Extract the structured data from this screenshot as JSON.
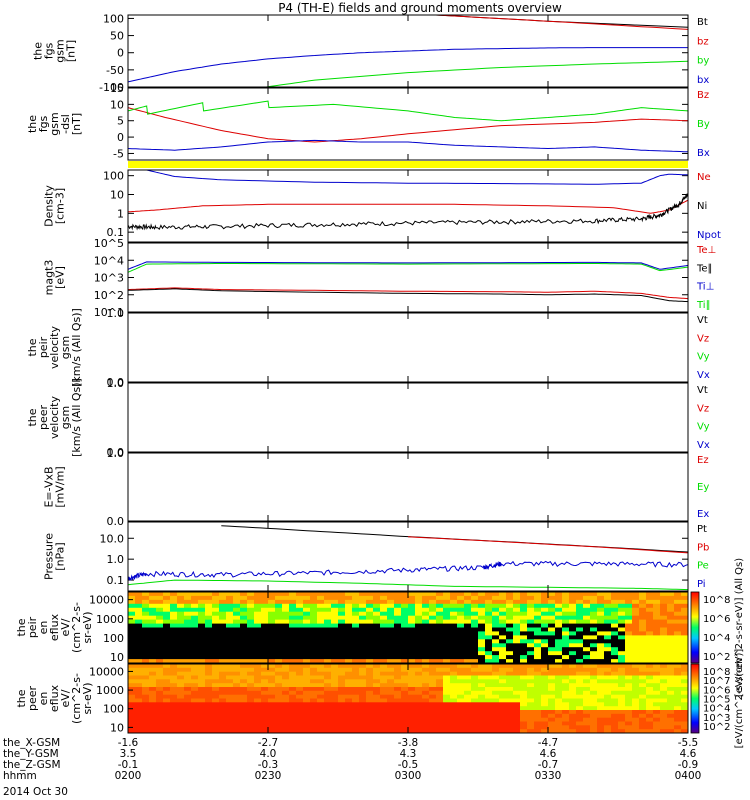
{
  "title": "P4 (TH-E) fields and ground moments overview",
  "date_label": "2014 Oct 30",
  "colors": {
    "black": "#000000",
    "red": "#dd0000",
    "green": "#00dd00",
    "blue": "#0000cc",
    "yellow": "#ffff00"
  },
  "chart_data": [
    {
      "type": "line",
      "name": "fgs",
      "ylabel": [
        "the",
        "fgs",
        "gsm",
        "[nT]"
      ],
      "ylim": [
        -100,
        110
      ],
      "yticks": [
        100,
        50,
        0,
        -50,
        -100
      ],
      "log": false,
      "legend": [
        {
          "text": "Bt",
          "color": "#000000"
        },
        {
          "text": "bz",
          "color": "#dd0000"
        },
        {
          "text": "by",
          "color": "#00dd00"
        },
        {
          "text": "bx",
          "color": "#0000cc"
        }
      ],
      "series": [
        {
          "color": "#000000",
          "points": [
            [
              14.3,
              200
            ],
            [
              33,
              110
            ],
            [
              45,
              92
            ],
            [
              60,
              74
            ]
          ]
        },
        {
          "color": "#dd0000",
          "points": [
            [
              33,
              110
            ],
            [
              45,
              92
            ],
            [
              60,
              68
            ]
          ]
        },
        {
          "color": "#00dd00",
          "points": [
            [
              10,
              -160
            ],
            [
              13.8,
              -104
            ],
            [
              20,
              -80
            ],
            [
              30,
              -58
            ],
            [
              40,
              -43
            ],
            [
              50,
              -33
            ],
            [
              60,
              -25
            ]
          ]
        },
        {
          "color": "#0000cc",
          "points": [
            [
              0,
              -85
            ],
            [
              5,
              -55
            ],
            [
              10,
              -33
            ],
            [
              15,
              -18
            ],
            [
              20,
              -8
            ],
            [
              25,
              0
            ],
            [
              30,
              5
            ],
            [
              35,
              10
            ],
            [
              40,
              12
            ],
            [
              45,
              14
            ],
            [
              50,
              15
            ],
            [
              60,
              15
            ]
          ]
        }
      ]
    },
    {
      "type": "line",
      "name": "fgm",
      "ylabel": [
        "the",
        "fgs",
        "gsm",
        "-dsl",
        "[nT]"
      ],
      "ylim": [
        -7,
        15
      ],
      "yticks": [
        15,
        10,
        5,
        0,
        -5
      ],
      "log": false,
      "legend": [
        {
          "text": "Bz",
          "color": "#dd0000"
        },
        {
          "text": "By",
          "color": "#00dd00"
        },
        {
          "text": "Bx",
          "color": "#0000cc"
        }
      ],
      "series": [
        {
          "color": "#dd0000",
          "points": [
            [
              0,
              9
            ],
            [
              4,
              6
            ],
            [
              10,
              2
            ],
            [
              15,
              -0.5
            ],
            [
              20,
              -1.5
            ],
            [
              25,
              -0.5
            ],
            [
              30,
              1
            ],
            [
              40,
              3.5
            ],
            [
              50,
              4.5
            ],
            [
              55,
              5.5
            ],
            [
              60,
              5
            ]
          ]
        },
        {
          "color": "#00dd00",
          "sawtooth": true,
          "points": [
            [
              0,
              8
            ],
            [
              2,
              9.5
            ],
            [
              2.1,
              7
            ],
            [
              8,
              10.5
            ],
            [
              8.1,
              8
            ],
            [
              15,
              11
            ],
            [
              15.1,
              9
            ],
            [
              22,
              10
            ],
            [
              30,
              8
            ],
            [
              35,
              6
            ],
            [
              40,
              5
            ],
            [
              45,
              6
            ],
            [
              50,
              7
            ],
            [
              55,
              9
            ],
            [
              60,
              8
            ]
          ]
        },
        {
          "color": "#0000cc",
          "points": [
            [
              0,
              -3.5
            ],
            [
              5,
              -4
            ],
            [
              10,
              -3
            ],
            [
              15,
              -1.5
            ],
            [
              20,
              -1
            ],
            [
              25,
              -1.5
            ],
            [
              30,
              -1.5
            ],
            [
              35,
              -2.5
            ],
            [
              40,
              -3
            ],
            [
              45,
              -3.5
            ],
            [
              50,
              -3
            ],
            [
              55,
              -4
            ],
            [
              60,
              -4.5
            ]
          ]
        }
      ]
    },
    {
      "type": "line",
      "name": "density",
      "ylabel": [
        "Density",
        "[cm-3]"
      ],
      "ylim": [
        0.03,
        200
      ],
      "yticks": [
        100,
        10,
        1,
        0.1
      ],
      "log": true,
      "legend": [
        {
          "text": "Ne",
          "color": "#dd0000"
        },
        {
          "text": "Ni",
          "color": "#000000"
        },
        {
          "text": "Npot",
          "color": "#0000cc"
        }
      ],
      "series": [
        {
          "color": "#0000cc",
          "points": [
            [
              0,
              300
            ],
            [
              2,
              200
            ],
            [
              5,
              90
            ],
            [
              10,
              60
            ],
            [
              20,
              45
            ],
            [
              30,
              40
            ],
            [
              40,
              38
            ],
            [
              50,
              35
            ],
            [
              55,
              40
            ],
            [
              57,
              100
            ],
            [
              58,
              120
            ],
            [
              60,
              110
            ]
          ]
        },
        {
          "color": "#dd0000",
          "points": [
            [
              0,
              1.2
            ],
            [
              3,
              1.5
            ],
            [
              8,
              2.5
            ],
            [
              15,
              3
            ],
            [
              25,
              3
            ],
            [
              35,
              3
            ],
            [
              45,
              2.5
            ],
            [
              52,
              2
            ],
            [
              56,
              1
            ],
            [
              58,
              1.5
            ],
            [
              60,
              5
            ]
          ]
        },
        {
          "color": "#000000",
          "noise": true,
          "points": [
            [
              0,
              0.2
            ],
            [
              3,
              0.18
            ],
            [
              10,
              0.2
            ],
            [
              20,
              0.25
            ],
            [
              30,
              0.3
            ],
            [
              40,
              0.35
            ],
            [
              50,
              0.4
            ],
            [
              55,
              0.5
            ],
            [
              57,
              0.8
            ],
            [
              59,
              3
            ],
            [
              60,
              10
            ]
          ]
        }
      ]
    },
    {
      "type": "line",
      "name": "temperature",
      "ylabel": [
        "magt3",
        "[eV]"
      ],
      "ylim": [
        10,
        100000
      ],
      "yticks": [
        100000,
        10000,
        1000,
        100,
        10
      ],
      "tick_labels": [
        "10^5",
        "10^4",
        "10^3",
        "10^2",
        "10^1"
      ],
      "log": true,
      "legend": [
        {
          "text": "Te⊥",
          "color": "#dd0000"
        },
        {
          "text": "Te∥",
          "color": "#000000"
        },
        {
          "text": "Ti⊥",
          "color": "#0000cc"
        },
        {
          "text": "Ti∥",
          "color": "#00dd00"
        }
      ],
      "series": [
        {
          "color": "#00dd00",
          "points": [
            [
              0,
              2000
            ],
            [
              2,
              6000
            ],
            [
              10,
              6500
            ],
            [
              30,
              6000
            ],
            [
              50,
              6500
            ],
            [
              55,
              6000
            ],
            [
              57,
              2500
            ],
            [
              60,
              4000
            ]
          ]
        },
        {
          "color": "#0000cc",
          "points": [
            [
              0,
              3000
            ],
            [
              2,
              8000
            ],
            [
              10,
              7500
            ],
            [
              30,
              7000
            ],
            [
              50,
              7500
            ],
            [
              55,
              7000
            ],
            [
              57,
              3000
            ],
            [
              60,
              5000
            ]
          ]
        },
        {
          "color": "#dd0000",
          "points": [
            [
              0,
              200
            ],
            [
              5,
              250
            ],
            [
              10,
              200
            ],
            [
              20,
              180
            ],
            [
              30,
              160
            ],
            [
              40,
              150
            ],
            [
              45,
              140
            ],
            [
              50,
              160
            ],
            [
              55,
              120
            ],
            [
              58,
              70
            ],
            [
              60,
              60
            ]
          ]
        },
        {
          "color": "#000000",
          "points": [
            [
              0,
              180
            ],
            [
              5,
              220
            ],
            [
              10,
              170
            ],
            [
              20,
              140
            ],
            [
              30,
              120
            ],
            [
              40,
              110
            ],
            [
              45,
              100
            ],
            [
              50,
              110
            ],
            [
              55,
              90
            ],
            [
              58,
              45
            ],
            [
              60,
              40
            ]
          ]
        }
      ]
    },
    {
      "type": "line",
      "name": "peir-velocity",
      "ylabel": [
        "the",
        "peir",
        "velocity",
        "gsm",
        "[km/s (All Qs)]"
      ],
      "ylim": [
        0,
        1
      ],
      "log": false,
      "legend": [
        {
          "text": "Vt",
          "color": "#000000"
        },
        {
          "text": "Vz",
          "color": "#dd0000"
        },
        {
          "text": "Vy",
          "color": "#00dd00"
        },
        {
          "text": "Vx",
          "color": "#0000cc"
        }
      ],
      "series": []
    },
    {
      "type": "line",
      "name": "peer-velocity",
      "ylabel": [
        "the",
        "peer",
        "velocity",
        "gsm",
        "[km/s (All Qs)]"
      ],
      "ylim": [
        0,
        1
      ],
      "log": false,
      "legend": [
        {
          "text": "Vt",
          "color": "#000000"
        },
        {
          "text": "Vz",
          "color": "#dd0000"
        },
        {
          "text": "Vy",
          "color": "#00dd00"
        },
        {
          "text": "Vx",
          "color": "#0000cc"
        }
      ],
      "series": []
    },
    {
      "type": "line",
      "name": "efield",
      "ylabel": [
        "E=-VxB",
        "[mV/m]"
      ],
      "ylim": [
        0,
        1
      ],
      "log": false,
      "legend": [
        {
          "text": "Ez",
          "color": "#dd0000"
        },
        {
          "text": "Ey",
          "color": "#00dd00"
        },
        {
          "text": "Ex",
          "color": "#0000cc"
        }
      ],
      "series": []
    },
    {
      "type": "line",
      "name": "pressure",
      "ylabel": [
        "Pressure",
        "[nPa]"
      ],
      "ylim": [
        0.03,
        60
      ],
      "yticks": [
        10.0,
        1.0,
        0.1
      ],
      "tick_labels": [
        "10.0",
        "1.0",
        "0.1"
      ],
      "log": true,
      "legend": [
        {
          "text": "Pt",
          "color": "#000000"
        },
        {
          "text": "Pb",
          "color": "#dd0000"
        },
        {
          "text": "Pe",
          "color": "#00dd00"
        },
        {
          "text": "Pi",
          "color": "#0000cc"
        }
      ],
      "series": [
        {
          "color": "#000000",
          "points": [
            [
              10,
              40
            ],
            [
              20,
              22
            ],
            [
              30,
              12
            ],
            [
              40,
              7
            ],
            [
              50,
              4
            ],
            [
              60,
              2.2
            ]
          ]
        },
        {
          "color": "#dd0000",
          "points": [
            [
              30,
              11.8
            ],
            [
              40,
              6.9
            ],
            [
              50,
              3.9
            ],
            [
              60,
              2.0
            ]
          ]
        },
        {
          "color": "#0000cc",
          "noise": true,
          "points": [
            [
              0,
              0.12
            ],
            [
              2,
              0.2
            ],
            [
              10,
              0.18
            ],
            [
              20,
              0.22
            ],
            [
              30,
              0.3
            ],
            [
              38,
              0.4
            ],
            [
              40,
              0.6
            ],
            [
              50,
              0.6
            ],
            [
              60,
              0.55
            ]
          ]
        },
        {
          "color": "#00dd00",
          "points": [
            [
              0,
              0.06
            ],
            [
              5,
              0.1
            ],
            [
              15,
              0.09
            ],
            [
              25,
              0.07
            ],
            [
              35,
              0.05
            ],
            [
              45,
              0.045
            ],
            [
              55,
              0.04
            ],
            [
              60,
              0.035
            ]
          ]
        }
      ]
    },
    {
      "type": "heatmap",
      "name": "peir-eflux",
      "ylabel": [
        "the",
        "peir",
        "en",
        "eflux",
        "eV/",
        "(cm^2-s-",
        "sr-eV)"
      ],
      "yticks": [
        10000,
        1000,
        100,
        10
      ],
      "tick_labels": [
        "10000",
        "1000",
        "100",
        "10"
      ],
      "colorbar_label": "[eV/(cm^2-s-sr-eV)] (All Qs)",
      "colorbar_ticks": [
        "10^8",
        "10^6",
        "10^4",
        "10^2"
      ]
    },
    {
      "type": "heatmap",
      "name": "peer-eflux",
      "ylabel": [
        "the",
        "peer",
        "en",
        "eflux",
        "eV/",
        "(cm^2-s-",
        "sr-eV)"
      ],
      "yticks": [
        10000,
        1000,
        100,
        10
      ],
      "tick_labels": [
        "10000",
        "1000",
        "100",
        "10"
      ],
      "colorbar_label": "[eV/(cm^2-s-sr-eV)]",
      "colorbar_ticks": [
        "10^8",
        "10^7",
        "10^6",
        "10^5",
        "10^4",
        "10^3",
        "10^2"
      ]
    }
  ],
  "time_axis": {
    "range_minutes": [
      0,
      120
    ],
    "ticks_minutes": [
      0,
      30,
      60,
      90,
      120
    ]
  },
  "ephemeris": {
    "rows": [
      {
        "label": "the_X-GSM",
        "values": [
          "-1.6",
          "-2.7",
          "-3.8",
          "-4.7",
          "-5.5"
        ]
      },
      {
        "label": "the_Y-GSM",
        "values": [
          "3.5",
          "4.0",
          "4.3",
          "4.6",
          "4.6"
        ]
      },
      {
        "label": "the_Z-GSM",
        "values": [
          "-0.1",
          "-0.3",
          "-0.5",
          "-0.7",
          "-0.9"
        ]
      },
      {
        "label": "hhmm",
        "values": [
          "0200",
          "0230",
          "0300",
          "0330",
          "0400"
        ]
      }
    ]
  }
}
